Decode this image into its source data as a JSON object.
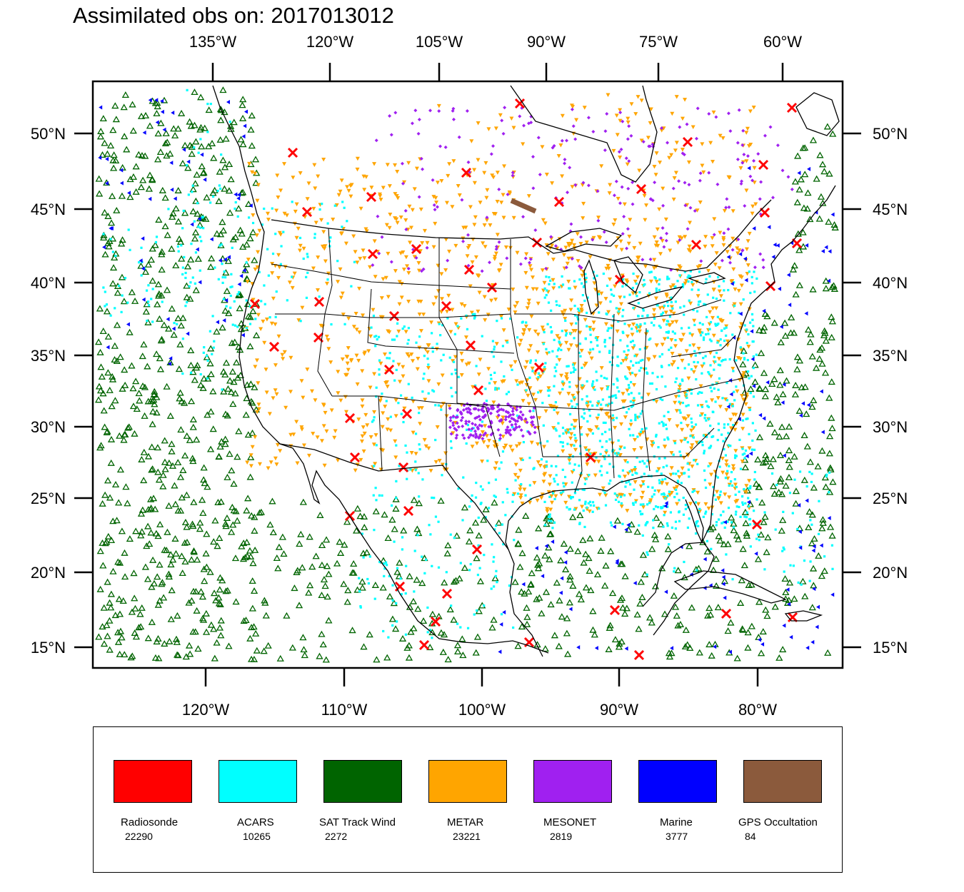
{
  "title": "Assimilated obs on: 2017013012",
  "axes": {
    "top_lon_labels": [
      "135°W",
      "120°W",
      "105°W",
      "90°W",
      "75°W",
      "60°W"
    ],
    "bottom_lon_labels": [
      "120°W",
      "110°W",
      "100°W",
      "90°W",
      "80°W"
    ],
    "lat_labels": [
      "50°N",
      "45°N",
      "40°N",
      "35°N",
      "30°N",
      "25°N",
      "20°N",
      "15°N"
    ]
  },
  "legend": [
    {
      "name": "Radiosonde",
      "count": "22290",
      "color": "#ff0000"
    },
    {
      "name": "ACARS",
      "count": "10265",
      "color": "#00ffff"
    },
    {
      "name": "SAT Track Wind",
      "count": "2272",
      "color": "#006400"
    },
    {
      "name": "METAR",
      "count": "23221",
      "color": "#ffa500"
    },
    {
      "name": "MESONET",
      "count": "2819",
      "color": "#a020f0"
    },
    {
      "name": "Marine",
      "count": "3777",
      "color": "#0000ff"
    },
    {
      "name": "GPS Occultation",
      "count": "84",
      "color": "#8b5a3c"
    }
  ]
}
